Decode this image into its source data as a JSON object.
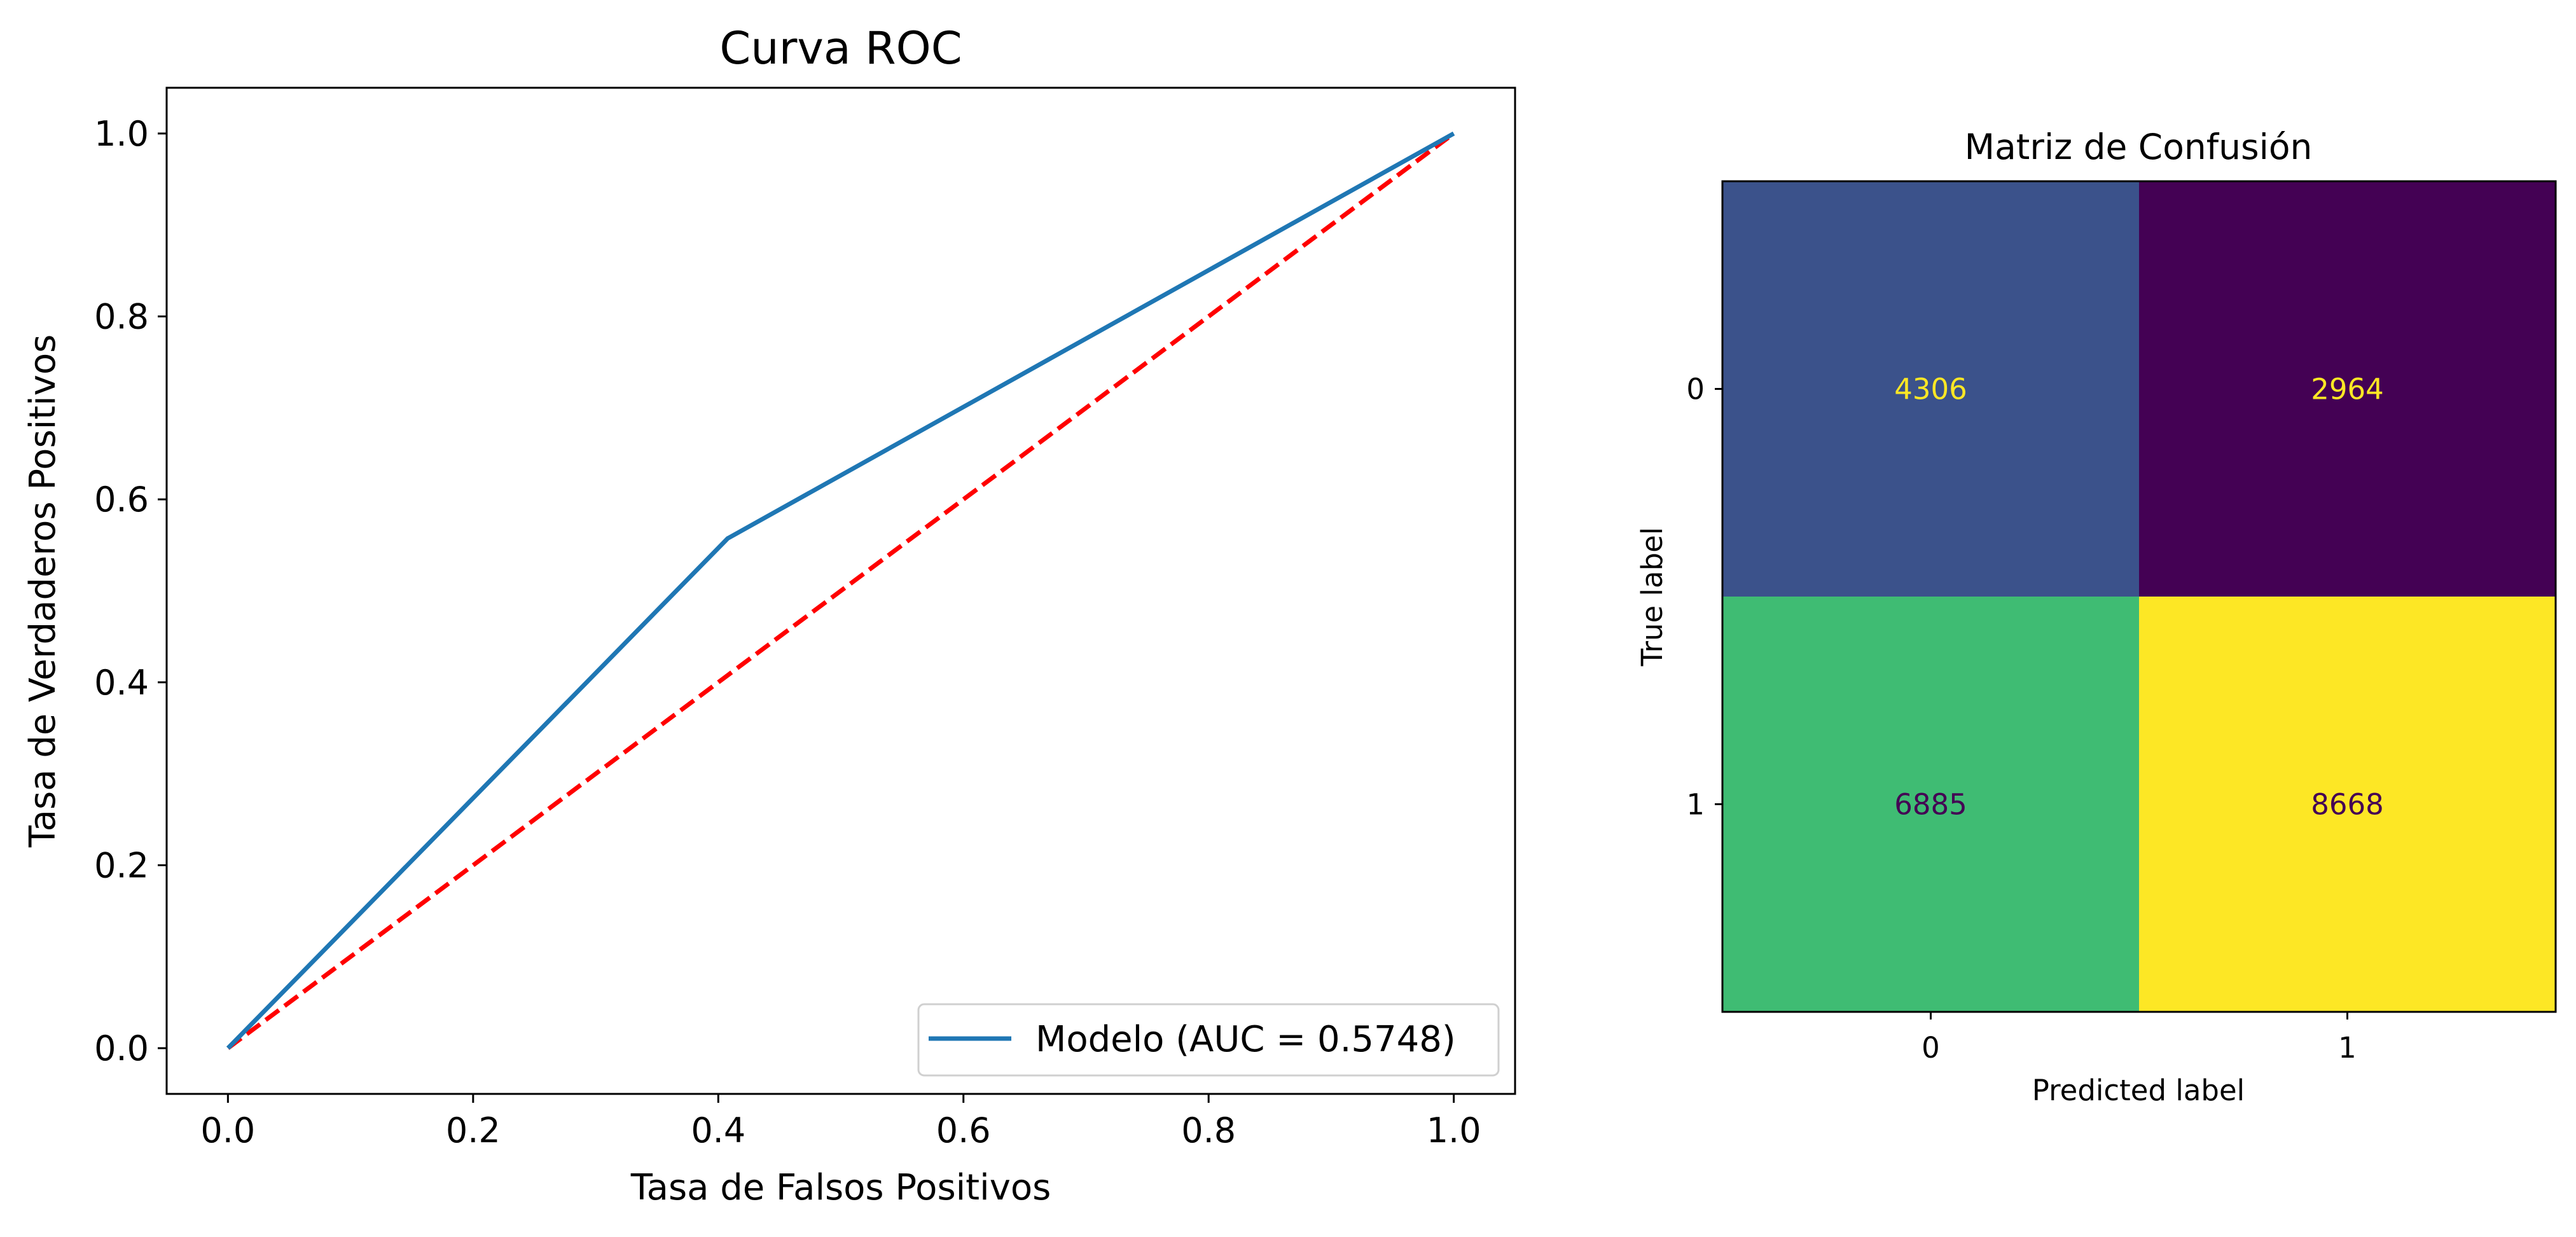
{
  "chart_data": [
    {
      "type": "line",
      "title": "Curva ROC",
      "xlabel": "Tasa de Falsos Positivos",
      "ylabel": "Tasa de Verdaderos Positivos",
      "xlim": [
        -0.05,
        1.05
      ],
      "ylim": [
        -0.05,
        1.05
      ],
      "xticks": [
        0.0,
        0.2,
        0.4,
        0.6,
        0.8,
        1.0
      ],
      "yticks": [
        0.0,
        0.2,
        0.4,
        0.6,
        0.8,
        1.0
      ],
      "xtick_labels": [
        "0.0",
        "0.2",
        "0.4",
        "0.6",
        "0.8",
        "1.0"
      ],
      "ytick_labels": [
        "0.0",
        "0.2",
        "0.4",
        "0.6",
        "0.8",
        "1.0"
      ],
      "grid": false,
      "legend_position": "lower-right",
      "series": [
        {
          "name": "Modelo (AUC = 0.5748)",
          "x": [
            0.0,
            0.4077,
            1.0
          ],
          "y": [
            0.0,
            0.5573,
            1.0
          ],
          "color": "#1f77b4",
          "style": "solid"
        },
        {
          "x": [
            0.0,
            1.0
          ],
          "y": [
            0.0,
            1.0
          ],
          "color": "#ff0000",
          "style": "dashed"
        }
      ]
    },
    {
      "type": "heatmap",
      "title": "Matriz de Confusión",
      "xlabel": "Predicted label",
      "ylabel": "True label",
      "x_categories": [
        "0",
        "1"
      ],
      "y_categories": [
        "0",
        "1"
      ],
      "values": [
        [
          4306,
          2964
        ],
        [
          6885,
          8668
        ]
      ],
      "cell_colors": [
        [
          "#3b528b",
          "#440154"
        ],
        [
          "#3fbc73",
          "#fde725"
        ]
      ],
      "text_colors": [
        [
          "#fde725",
          "#fde725"
        ],
        [
          "#440154",
          "#440154"
        ]
      ]
    }
  ]
}
